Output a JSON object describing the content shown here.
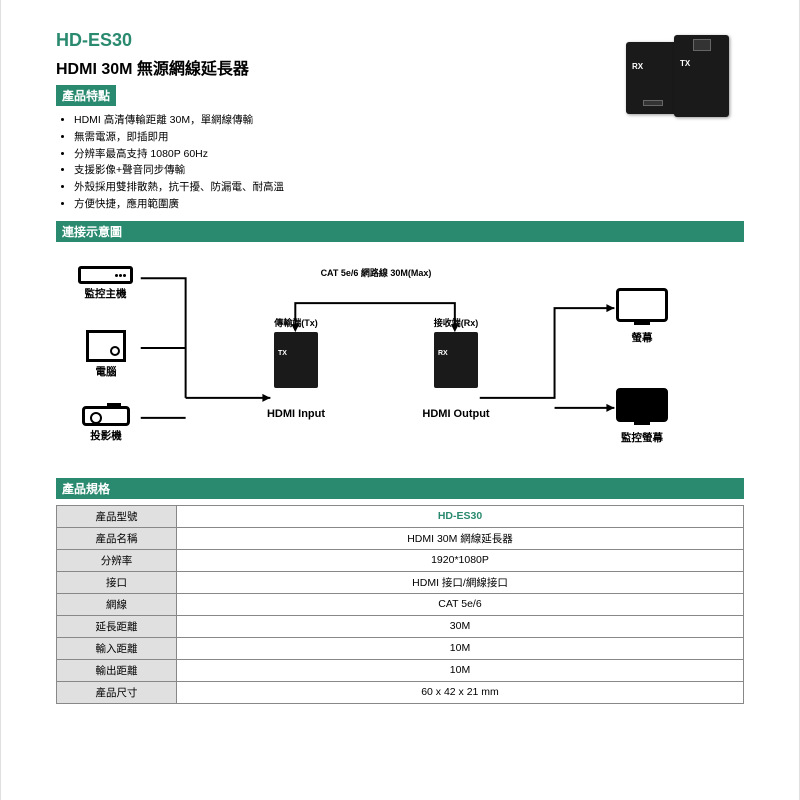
{
  "header": {
    "model": "HD-ES30",
    "title": "HDMI 30M 無源網線延長器"
  },
  "sections": {
    "features": "產品特點",
    "diagram": "連接示意圖",
    "specs": "產品規格"
  },
  "features": [
    "HDMI 高清傳輸距離 30M，單網線傳輸",
    "無需電源，即插即用",
    "分辨率最高支持 1080P 60Hz",
    "支援影像+聲音同步傳輸",
    "外殼採用雙排散熱，抗干擾、防漏電、耐高溫",
    "方便快捷，應用範圍廣"
  ],
  "diagram": {
    "src_dvr": "監控主機",
    "src_pc": "電腦",
    "src_proj": "投影機",
    "tx_title": "傳輸端(Tx)",
    "rx_title": "接收端(Rx)",
    "cat_label": "CAT 5e/6 網路線 30M(Max)",
    "hdmi_in": "HDMI Input",
    "hdmi_out": "HDMI Output",
    "out_screen": "螢幕",
    "out_monitor": "監控螢幕",
    "tx_box": "TX",
    "rx_box": "RX"
  },
  "spec_rows": [
    {
      "label": "產品型號",
      "value": "HD-ES30",
      "is_model": true
    },
    {
      "label": "產品名稱",
      "value": "HDMI 30M 網線延長器",
      "is_model": false
    },
    {
      "label": "分辨率",
      "value": "1920*1080P",
      "is_model": false
    },
    {
      "label": "接口",
      "value": "HDMI 接口/網線接口",
      "is_model": false
    },
    {
      "label": "網線",
      "value": "CAT 5e/6",
      "is_model": false
    },
    {
      "label": "延長距離",
      "value": "30M",
      "is_model": false
    },
    {
      "label": "輸入距離",
      "value": "10M",
      "is_model": false
    },
    {
      "label": "輸出距離",
      "value": "10M",
      "is_model": false
    },
    {
      "label": "產品尺寸",
      "value": "60 x 42 x 21 mm",
      "is_model": false
    }
  ],
  "colors": {
    "accent": "#2a8a6f",
    "border": "#888888",
    "header_bg": "#e0e0e0"
  }
}
